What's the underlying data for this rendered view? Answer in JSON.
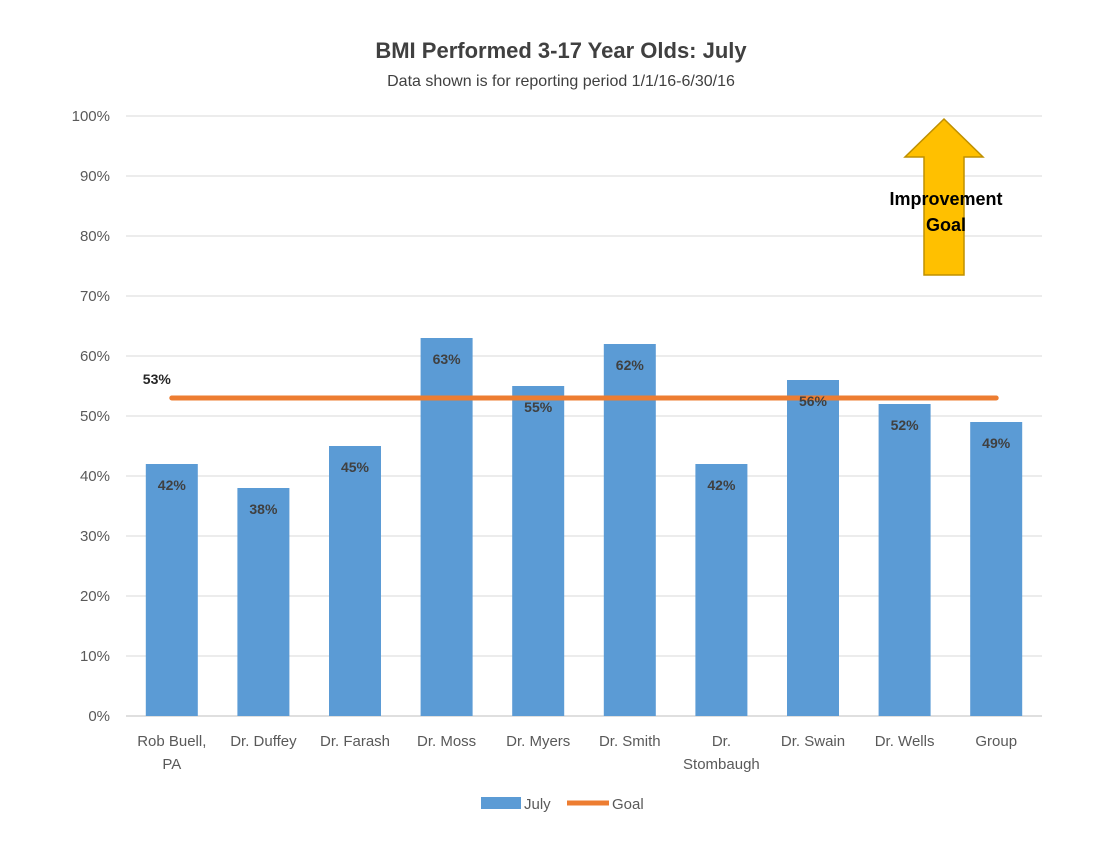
{
  "chart_data": {
    "type": "bar",
    "title": "BMI Performed 3-17 Year Olds: July",
    "subtitle": "Data shown is for reporting period 1/1/16-6/30/16",
    "categories": [
      [
        "Rob Buell,",
        "PA"
      ],
      [
        "Dr. Duffey"
      ],
      [
        "Dr. Farash"
      ],
      [
        "Dr. Moss"
      ],
      [
        "Dr. Myers"
      ],
      [
        "Dr. Smith"
      ],
      [
        "Dr.",
        "Stombaugh"
      ],
      [
        "Dr. Swain"
      ],
      [
        "Dr. Wells"
      ],
      [
        "Group"
      ]
    ],
    "series": [
      {
        "name": "July",
        "values": [
          42,
          38,
          45,
          63,
          55,
          62,
          42,
          56,
          52,
          49
        ],
        "labels": [
          "42%",
          "38%",
          "45%",
          "63%",
          "55%",
          "62%",
          "42%",
          "56%",
          "52%",
          "49%"
        ],
        "color": "#5B9BD5"
      },
      {
        "name": "Goal",
        "type": "line",
        "value": 53,
        "label": "53%",
        "color": "#ED7D31"
      }
    ],
    "ylim": [
      0,
      100
    ],
    "yticks": [
      "0%",
      "10%",
      "20%",
      "30%",
      "40%",
      "50%",
      "60%",
      "70%",
      "80%",
      "90%",
      "100%"
    ],
    "grid": true,
    "legend_placement": "bottom",
    "annotation": {
      "lines": [
        "Improvement",
        "Goal"
      ],
      "arrow_color": "#FFC000",
      "arrow_outline": "#BF9000",
      "direction": "up"
    }
  }
}
